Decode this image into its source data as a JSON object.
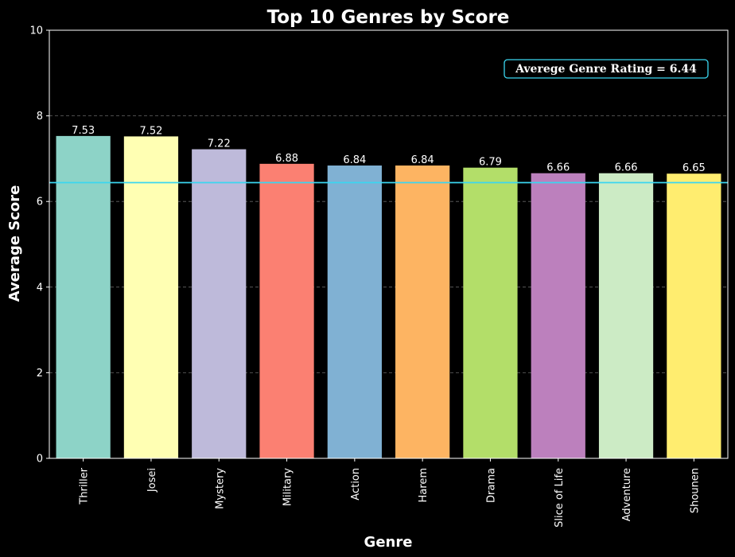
{
  "chart_data": {
    "type": "bar",
    "title": "Top 10 Genres by Score",
    "xlabel": "Genre",
    "ylabel": "Average Score",
    "categories": [
      "Thriller",
      "Josei",
      "Mystery",
      "Military",
      "Action",
      "Harem",
      "Drama",
      "Slice of Life",
      "Adventure",
      "Shounen"
    ],
    "values": [
      7.53,
      7.52,
      7.22,
      6.88,
      6.84,
      6.84,
      6.79,
      6.66,
      6.66,
      6.65
    ],
    "value_labels": [
      "7.53",
      "7.52",
      "7.22",
      "6.88",
      "6.84",
      "6.84",
      "6.79",
      "6.66",
      "6.66",
      "6.65"
    ],
    "bar_colors": [
      "#8dd3c7",
      "#ffffb3",
      "#bebada",
      "#fb8072",
      "#80b1d3",
      "#fdb462",
      "#b3de69",
      "#bc80bd",
      "#ccebc5",
      "#ffed6f"
    ],
    "ylim": [
      0,
      10
    ],
    "yticks": [
      "0",
      "2",
      "4",
      "6",
      "8",
      "10"
    ],
    "ytick_values": [
      0,
      2,
      4,
      6,
      8,
      10
    ],
    "grid": "horizontal dashed",
    "reference_line": {
      "value": 6.44,
      "color": "#3ad6f0",
      "label": "Averege Genre Rating = 6.44"
    },
    "background": "#000000",
    "text_color": "#ffffff"
  }
}
